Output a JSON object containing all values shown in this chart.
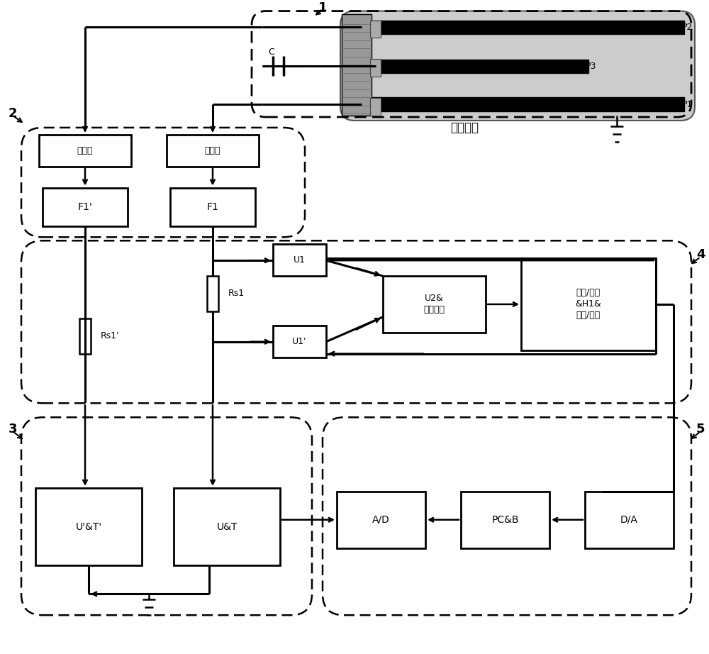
{
  "bg_color": "#ffffff",
  "gray_fill": "#cccccc",
  "figure_width": 10.0,
  "figure_height": 9.22,
  "labels": {
    "label1": "1",
    "label2": "2",
    "label3": "3",
    "label4": "4",
    "label5": "5",
    "plasma": "等离子体",
    "P1": "P1",
    "P2": "P2",
    "P3": "P3",
    "C": "C",
    "qianChuli": "前处理",
    "F1p": "F1'",
    "F1": "F1",
    "Rs1": "Rs1",
    "Rs1p": "Rs1'",
    "U1": "U1",
    "U1p": "U1'",
    "U2": "U2&\n反馈电路",
    "voltage_box": "电压/电流\n&H1&\n电流/电压",
    "UT": "U&T",
    "UTp": "U'&T'",
    "AD": "A/D",
    "PCB": "PC&B",
    "DA": "D/A"
  }
}
